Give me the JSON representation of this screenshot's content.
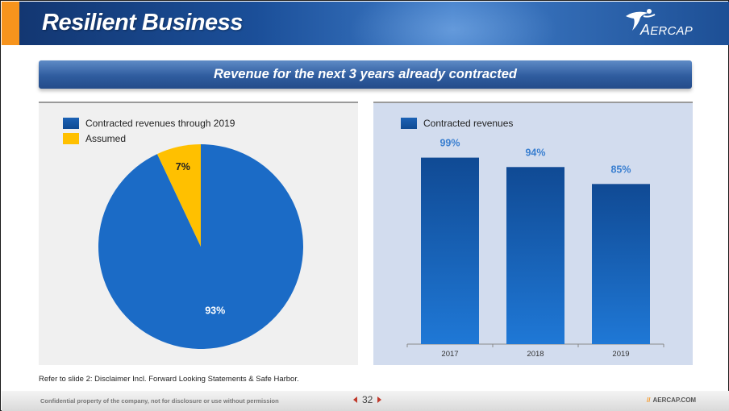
{
  "header": {
    "title": "Resilient Business",
    "logo_text_prefix": "A",
    "logo_text_rest": "ERCAP",
    "logo_icon": "aercap-figure-icon"
  },
  "banner": {
    "text": "Revenue for the next 3 years already contracted"
  },
  "colors": {
    "accent": "#f7941d",
    "blue": "#1b6bc6",
    "yellow": "#ffc000",
    "label_blue": "#3a7fd0"
  },
  "pie_panel": {
    "legend": [
      {
        "label": "Contracted revenues through 2019",
        "color": "blue"
      },
      {
        "label": "Assumed",
        "color": "yellow"
      }
    ]
  },
  "bar_panel": {
    "legend": [
      {
        "label": "Contracted revenues",
        "color": "blue"
      }
    ]
  },
  "chart_data": [
    {
      "type": "pie",
      "slices": [
        {
          "name": "Contracted revenues through 2019",
          "value": 93,
          "label": "93%"
        },
        {
          "name": "Assumed",
          "value": 7,
          "label": "7%"
        }
      ]
    },
    {
      "type": "bar",
      "categories": [
        "2017",
        "2018",
        "2019"
      ],
      "series": [
        {
          "name": "Contracted revenues",
          "values": [
            99,
            94,
            85
          ],
          "labels": [
            "99%",
            "94%",
            "85%"
          ]
        }
      ],
      "ylim": [
        0,
        100
      ]
    }
  ],
  "footnote": "Refer to slide 2: Disclaimer Incl. Forward Looking Statements & Safe Harbor.",
  "footer": {
    "confidential": "Confidential property of the company, not for disclosure or use without permission",
    "page_number": "32",
    "slashes": "//",
    "website": "AERCAP.COM"
  }
}
